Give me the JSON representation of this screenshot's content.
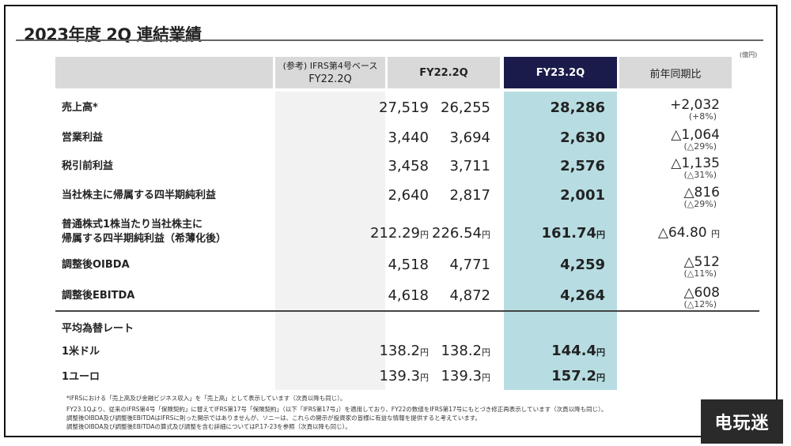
{
  "title": "2023年度 2Q 連結業績",
  "unit": "(億円)",
  "columns": {
    "ref_line1": "(参考) IFRS第4号ベース",
    "ref_line2": "FY22.2Q",
    "fy22": "FY22.2Q",
    "fy23": "FY23.2Q",
    "yoy": "前年同期比"
  },
  "colors": {
    "highlight_header": "#1b1b4b",
    "highlight_column": "#b7dde2",
    "header_bg": "#d9d9d9",
    "ref_column": "#f2f2f2"
  },
  "rows": [
    {
      "label": "売上高*",
      "ref": "27,519",
      "fy22": "26,255",
      "fy23": "28,286",
      "diff": "+2,032",
      "pct": "(+8%)"
    },
    {
      "label": "営業利益",
      "ref": "3,440",
      "fy22": "3,694",
      "fy23": "2,630",
      "diff": "△1,064",
      "pct": "(△29%)"
    },
    {
      "label": "税引前利益",
      "ref": "3,458",
      "fy22": "3,711",
      "fy23": "2,576",
      "diff": "△1,135",
      "pct": "(△31%)"
    },
    {
      "label": "当社株主に帰属する四半期純利益",
      "ref": "2,640",
      "fy22": "2,817",
      "fy23": "2,001",
      "diff": "△816",
      "pct": "(△29%)"
    },
    {
      "label": "普通株式1株当たり当社株主に",
      "label2": "帰属する四半期純利益（希薄化後）",
      "ref": "212.29",
      "fy22": "226.54",
      "fy23": "161.74",
      "diff": "△64.80",
      "yen": "円"
    },
    {
      "label": "調整後OIBDA",
      "ref": "4,518",
      "fy22": "4,771",
      "fy23": "4,259",
      "diff": "△512",
      "pct": "(△11%)"
    },
    {
      "label": "調整後EBITDA",
      "ref": "4,618",
      "fy22": "4,872",
      "fy23": "4,264",
      "diff": "△608",
      "pct": "(△12%)"
    }
  ],
  "fx": {
    "heading": "平均為替レート",
    "yen": "円",
    "rows": [
      {
        "label": "1米ドル",
        "ref": "138.2",
        "fy22": "138.2",
        "fy23": "144.4"
      },
      {
        "label": "1ユーロ",
        "ref": "139.3",
        "fy22": "139.3",
        "fy23": "157.2"
      }
    ]
  },
  "notes": [
    "*IFRSにおける「売上高及び金融ビジネス収入」を「売上高」として表示しています（次頁以降も同じ）。",
    "FY23.1Qより、従来のIFRS第4号「保険契約」に替えてIFRS第17号「保険契約」（以下「IFRS第17号」）を適用しており、FY22の数値をIFRS第17号にもとづき修正再表示しています（次頁以降も同じ）。",
    "調整後OIBDA及び調整後EBITDAはIFRSに則った開示ではありませんが、ソニーは、これらの開示が投資家の皆様に有益な情報を提供すると考えています。",
    "調整後OIBDA及び調整後EBITDAの算式及び調整を含む詳細についてはP.17-23を参照（次頁以降も同じ）。"
  ],
  "watermark": "电玩迷"
}
